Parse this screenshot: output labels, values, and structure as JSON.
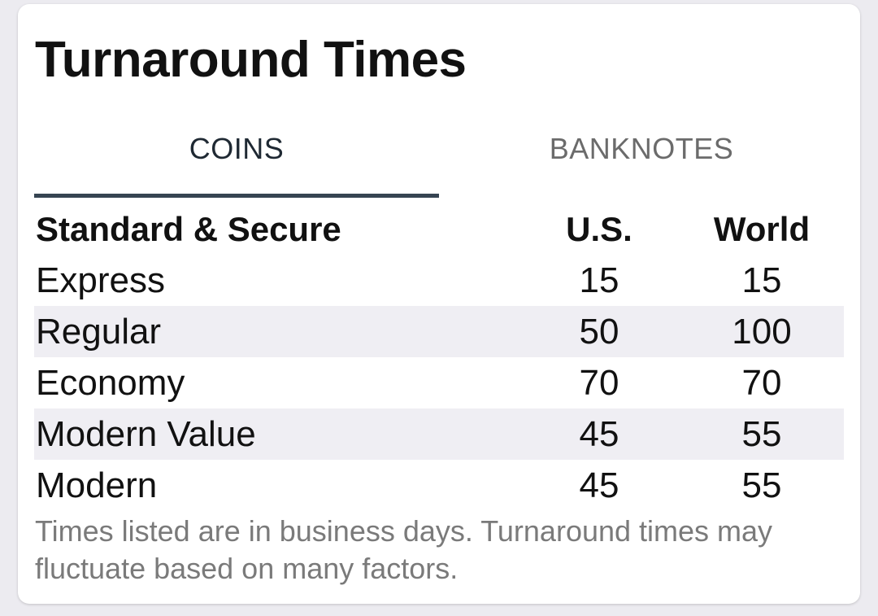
{
  "card": {
    "title": "Turnaround Times"
  },
  "tabs": [
    {
      "label": "COINS",
      "selected": true
    },
    {
      "label": "BANKNOTES",
      "selected": false
    }
  ],
  "table": {
    "headers": {
      "name": "Standard & Secure",
      "us": "U.S.",
      "world": "World"
    },
    "rows": [
      {
        "name": "Express",
        "us": "15",
        "world": "15"
      },
      {
        "name": "Regular",
        "us": "50",
        "world": "100"
      },
      {
        "name": "Economy",
        "us": "70",
        "world": "70"
      },
      {
        "name": "Modern Value",
        "us": "45",
        "world": "55"
      },
      {
        "name": "Modern",
        "us": "45",
        "world": "55"
      }
    ]
  },
  "note": "Times listed are in business days. Turnaround times may fluctuate based on many factors.",
  "colors": {
    "background": "#ecebf0",
    "card": "#ffffff",
    "tab_indicator": "#364452",
    "row_shade": "#efeef3",
    "note_text": "#7a7a7a"
  }
}
